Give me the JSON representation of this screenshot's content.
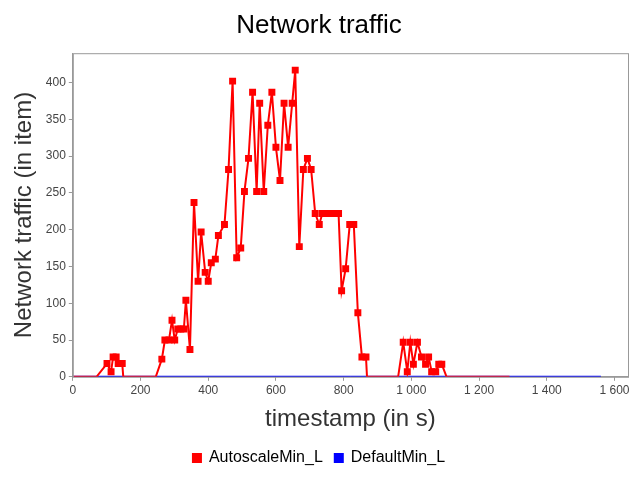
{
  "chart_data": {
    "type": "line",
    "title": "Network traffic",
    "x_label": "timestamp (in s)",
    "y_label": "Network traffic (in item)",
    "xlim": [
      0,
      1640
    ],
    "ylim": [
      0,
      440
    ],
    "xticks": [
      0,
      200,
      400,
      600,
      800,
      {
        "value": 1000,
        "label": "1 000"
      },
      {
        "value": 1200,
        "label": "1 200"
      },
      {
        "value": 1400,
        "label": "1 400"
      },
      {
        "value": 1600,
        "label": "1 600"
      }
    ],
    "yticks": [
      0,
      50,
      100,
      150,
      200,
      250,
      300,
      350,
      400
    ],
    "grid": false,
    "legend": "bottom",
    "series": [
      {
        "name": "AutoscaleMin_L",
        "color": "#ff0000",
        "marker": "square",
        "x": [
          0,
          70,
          101,
          113,
          119,
          128,
          134,
          146,
          149,
          245,
          263,
          272,
          284,
          293,
          301,
          310,
          319,
          328,
          334,
          346,
          358,
          370,
          379,
          391,
          400,
          409,
          421,
          430,
          448,
          460,
          472,
          484,
          496,
          507,
          519,
          531,
          543,
          552,
          564,
          576,
          588,
          600,
          612,
          624,
          636,
          648,
          657,
          669,
          681,
          693,
          704,
          716,
          728,
          737,
          749,
          761,
          773,
          785,
          794,
          806,
          818,
          830,
          842,
          854,
          866,
          869,
          961,
          976,
          988,
          997,
          1006,
          1018,
          1030,
          1042,
          1051,
          1060,
          1072,
          1081,
          1090,
          1104,
          1290
        ],
        "values": [
          0,
          0,
          18,
          7,
          27,
          27,
          18,
          18,
          0,
          0,
          24,
          50,
          50,
          77,
          50,
          65,
          65,
          65,
          104,
          37,
          237,
          130,
          197,
          142,
          130,
          155,
          160,
          192,
          207,
          282,
          402,
          162,
          175,
          252,
          297,
          387,
          252,
          372,
          252,
          342,
          387,
          312,
          267,
          372,
          312,
          372,
          417,
          177,
          282,
          297,
          282,
          222,
          207,
          222,
          222,
          222,
          222,
          222,
          117,
          147,
          207,
          207,
          87,
          27,
          27,
          0,
          0,
          47,
          7,
          47,
          17,
          47,
          27,
          17,
          27,
          7,
          7,
          17,
          17,
          0,
          0
        ]
      },
      {
        "name": "DefaultMin_L",
        "color": "#0000ff",
        "marker": "none",
        "x": [
          0,
          1560
        ],
        "values": [
          0,
          0
        ]
      }
    ]
  }
}
